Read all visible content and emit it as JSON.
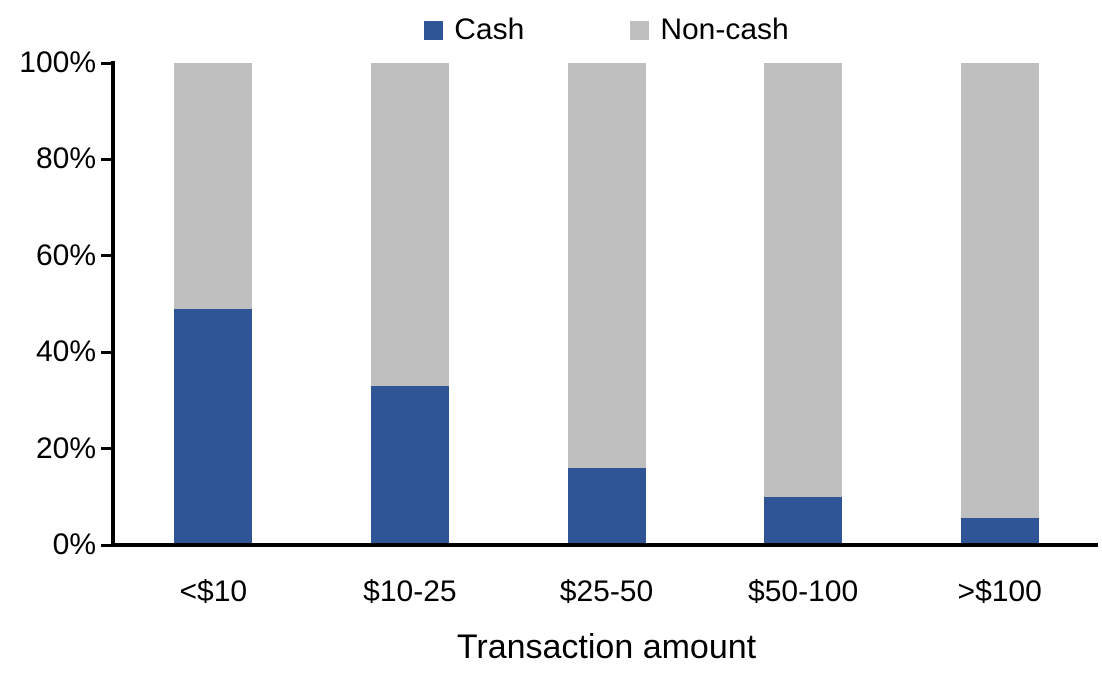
{
  "chart_data": {
    "type": "bar",
    "stacked": true,
    "percent_stacked": true,
    "title": "",
    "xlabel": "Transaction amount",
    "ylabel": "",
    "ylim": [
      0,
      100
    ],
    "y_ticks": [
      "0%",
      "20%",
      "40%",
      "60%",
      "80%",
      "100%"
    ],
    "y_tick_values": [
      0,
      20,
      40,
      60,
      80,
      100
    ],
    "grid": false,
    "legend_position": "top",
    "categories": [
      "<$10",
      "$10-25",
      "$25-50",
      "$50-100",
      ">$100"
    ],
    "series": [
      {
        "name": "Cash",
        "color": "#2F5597",
        "values": [
          49,
          33,
          16,
          10,
          5.5
        ]
      },
      {
        "name": "Non-cash",
        "color": "#BFBFBF",
        "values": [
          51,
          67,
          84,
          90,
          94.5
        ]
      }
    ]
  },
  "colors": {
    "axis": "#000000",
    "text": "#000000",
    "background": "#FFFFFF"
  }
}
